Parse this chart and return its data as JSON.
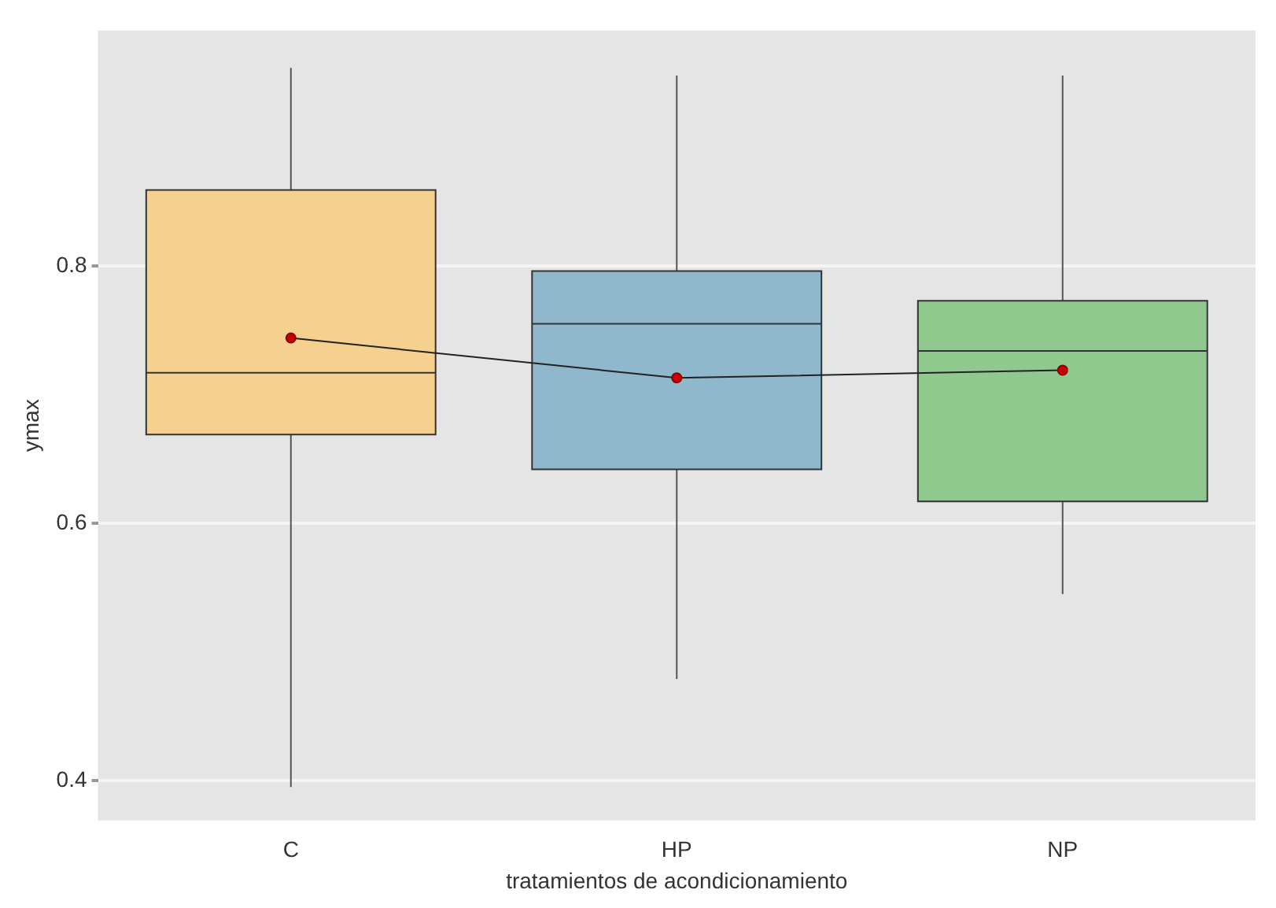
{
  "chart_data": {
    "type": "box",
    "xlabel": "tratamientos de acondicionamiento",
    "ylabel": "ymax",
    "categories": [
      "C",
      "HP",
      "NP"
    ],
    "colors": [
      "#f5d08f",
      "#8fb8cc",
      "#90c98e"
    ],
    "boxes": [
      {
        "low": 0.395,
        "q1": 0.669,
        "median": 0.717,
        "q3": 0.859,
        "high": 0.954
      },
      {
        "low": 0.479,
        "q1": 0.642,
        "median": 0.755,
        "q3": 0.796,
        "high": 0.948
      },
      {
        "low": 0.545,
        "q1": 0.617,
        "median": 0.734,
        "q3": 0.773,
        "high": 0.948
      }
    ],
    "series": [
      {
        "type": "line",
        "color": "#222222",
        "marker": "circle",
        "values": [
          0.744,
          0.713,
          0.719
        ]
      }
    ],
    "ylim": [
      0.369,
      0.983
    ],
    "yticks": [
      0.4,
      0.6,
      0.8
    ],
    "grid": "y",
    "legend": false
  }
}
